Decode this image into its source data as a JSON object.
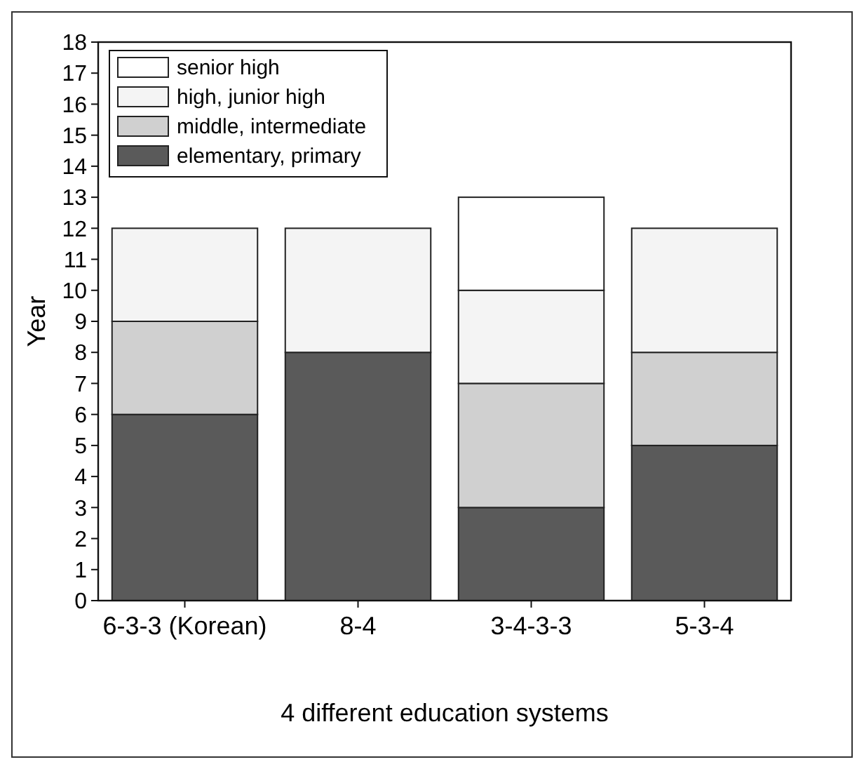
{
  "chart_data": {
    "type": "bar",
    "stacked": true,
    "xlabel": "4 different education systems",
    "ylabel": "Year",
    "categories": [
      "6-3-3 (Korean)",
      "8-4",
      "3-4-3-3",
      "5-3-4"
    ],
    "series": [
      {
        "name": "elementary, primary",
        "color": "#5a5a5a",
        "values": [
          6,
          8,
          3,
          5
        ]
      },
      {
        "name": "middle, intermediate",
        "color": "#d0d0d0",
        "values": [
          3,
          0,
          4,
          3
        ]
      },
      {
        "name": "high, junior high",
        "color": "#f4f4f4",
        "values": [
          3,
          4,
          3,
          4
        ]
      },
      {
        "name": "senior high",
        "color": "#ffffff",
        "values": [
          0,
          0,
          3,
          0
        ]
      }
    ],
    "ylim": [
      0,
      18
    ],
    "yticks": [
      0,
      1,
      2,
      3,
      4,
      5,
      6,
      7,
      8,
      9,
      10,
      11,
      12,
      13,
      14,
      15,
      16,
      17,
      18
    ],
    "grid": false,
    "legend": "top left"
  }
}
